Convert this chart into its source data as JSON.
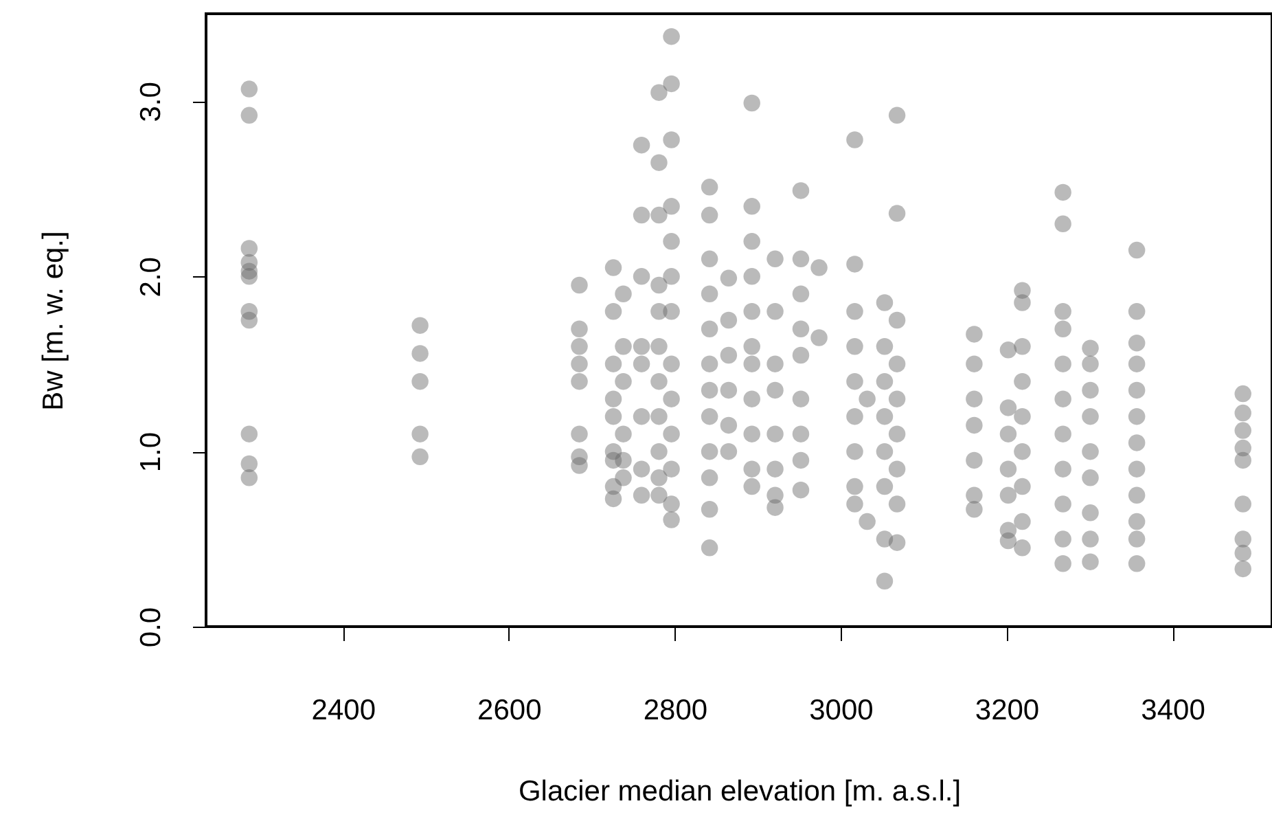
{
  "chart_data": {
    "type": "scatter",
    "xlabel": "Glacier median elevation [m. a.s.l.]",
    "ylabel": "Bw [m. w. eq.]",
    "xlim": [
      2235,
      3520
    ],
    "ylim": [
      0,
      3.5
    ],
    "xticks": [
      2400,
      2600,
      2800,
      3000,
      3200,
      3400
    ],
    "yticks": [
      {
        "value": 0,
        "label": "0.0"
      },
      {
        "value": 1,
        "label": "1.0"
      },
      {
        "value": 2,
        "label": "2.0"
      },
      {
        "value": 3,
        "label": "3.0"
      }
    ],
    "grid": false,
    "marker": "circle",
    "series": [
      {
        "color": "#666666",
        "x": [
          2287,
          2287,
          2287,
          2287,
          2287,
          2287,
          2287,
          2287,
          2287,
          2287,
          2287,
          2493,
          2493,
          2493,
          2493,
          2493,
          2685,
          2685,
          2685,
          2685,
          2685,
          2685,
          2685,
          2685,
          2726,
          2726,
          2726,
          2726,
          2726,
          2726,
          2726,
          2726,
          2726,
          2738,
          2738,
          2738,
          2738,
          2738,
          2738,
          2760,
          2760,
          2760,
          2760,
          2760,
          2760,
          2760,
          2760,
          2781,
          2781,
          2781,
          2781,
          2781,
          2781,
          2781,
          2781,
          2781,
          2781,
          2781,
          2796,
          2796,
          2796,
          2796,
          2796,
          2796,
          2796,
          2796,
          2796,
          2796,
          2796,
          2796,
          2796,
          2842,
          2842,
          2842,
          2842,
          2842,
          2842,
          2842,
          2842,
          2842,
          2842,
          2842,
          2842,
          2865,
          2865,
          2865,
          2865,
          2865,
          2865,
          2893,
          2893,
          2893,
          2893,
          2893,
          2893,
          2893,
          2893,
          2893,
          2893,
          2893,
          2921,
          2921,
          2921,
          2921,
          2921,
          2921,
          2921,
          2921,
          2952,
          2952,
          2952,
          2952,
          2952,
          2952,
          2952,
          2952,
          2952,
          2974,
          2974,
          3017,
          3017,
          3017,
          3017,
          3017,
          3017,
          3017,
          3017,
          3017,
          3032,
          3032,
          3053,
          3053,
          3053,
          3053,
          3053,
          3053,
          3053,
          3053,
          3068,
          3068,
          3068,
          3068,
          3068,
          3068,
          3068,
          3068,
          3068,
          3161,
          3161,
          3161,
          3161,
          3161,
          3161,
          3161,
          3202,
          3202,
          3202,
          3202,
          3202,
          3202,
          3202,
          3219,
          3219,
          3219,
          3219,
          3219,
          3219,
          3219,
          3219,
          3219,
          3268,
          3268,
          3268,
          3268,
          3268,
          3268,
          3268,
          3268,
          3268,
          3268,
          3268,
          3301,
          3301,
          3301,
          3301,
          3301,
          3301,
          3301,
          3301,
          3301,
          3357,
          3357,
          3357,
          3357,
          3357,
          3357,
          3357,
          3357,
          3357,
          3357,
          3357,
          3357,
          3485,
          3485,
          3485,
          3485,
          3485,
          3485,
          3485,
          3485,
          3485
        ],
        "values": [
          3.07,
          2.92,
          2.16,
          2.08,
          2.03,
          2.0,
          1.8,
          1.75,
          1.1,
          0.93,
          0.85,
          1.72,
          1.56,
          1.4,
          1.1,
          0.97,
          1.95,
          1.7,
          1.6,
          1.5,
          1.4,
          1.1,
          0.97,
          0.92,
          2.05,
          1.8,
          1.5,
          1.3,
          1.2,
          1.0,
          0.95,
          0.8,
          0.73,
          1.9,
          1.6,
          1.4,
          1.1,
          0.95,
          0.85,
          2.75,
          2.35,
          2.0,
          1.6,
          1.5,
          1.2,
          0.9,
          0.75,
          3.05,
          2.65,
          2.35,
          1.95,
          1.8,
          1.6,
          1.4,
          1.2,
          1.0,
          0.85,
          0.75,
          3.37,
          3.1,
          2.78,
          2.4,
          2.2,
          2.0,
          1.8,
          1.5,
          1.3,
          1.1,
          0.9,
          0.7,
          0.61,
          2.51,
          2.35,
          2.1,
          1.9,
          1.7,
          1.5,
          1.35,
          1.2,
          1.0,
          0.85,
          0.67,
          0.45,
          1.99,
          1.75,
          1.55,
          1.35,
          1.15,
          1.0,
          2.99,
          2.4,
          2.2,
          2.0,
          1.8,
          1.6,
          1.5,
          1.3,
          1.1,
          0.9,
          0.8,
          2.1,
          1.8,
          1.5,
          1.35,
          1.1,
          0.9,
          0.75,
          0.68,
          2.49,
          2.1,
          1.9,
          1.7,
          1.55,
          1.3,
          1.1,
          0.95,
          0.78,
          2.05,
          1.65,
          2.78,
          2.07,
          1.8,
          1.6,
          1.4,
          1.2,
          1.0,
          0.8,
          0.7,
          1.3,
          0.6,
          1.85,
          1.6,
          1.4,
          1.2,
          1.0,
          0.8,
          0.5,
          0.26,
          2.92,
          2.36,
          1.75,
          1.5,
          1.3,
          1.1,
          0.9,
          0.7,
          0.48,
          1.67,
          1.5,
          1.3,
          1.15,
          0.95,
          0.75,
          0.67,
          1.58,
          1.25,
          1.1,
          0.9,
          0.75,
          0.55,
          0.49,
          1.92,
          1.85,
          1.6,
          1.4,
          1.2,
          1.0,
          0.8,
          0.6,
          0.45,
          2.48,
          2.3,
          1.8,
          1.7,
          1.5,
          1.3,
          1.1,
          0.9,
          0.7,
          0.5,
          0.36,
          1.59,
          1.5,
          1.35,
          1.2,
          1.0,
          0.85,
          0.65,
          0.5,
          0.37,
          2.15,
          1.8,
          1.62,
          1.5,
          1.35,
          1.2,
          1.05,
          0.9,
          0.75,
          0.6,
          0.5,
          0.36,
          1.33,
          1.22,
          1.12,
          1.02,
          0.95,
          0.7,
          0.5,
          0.42,
          0.33
        ]
      }
    ]
  }
}
